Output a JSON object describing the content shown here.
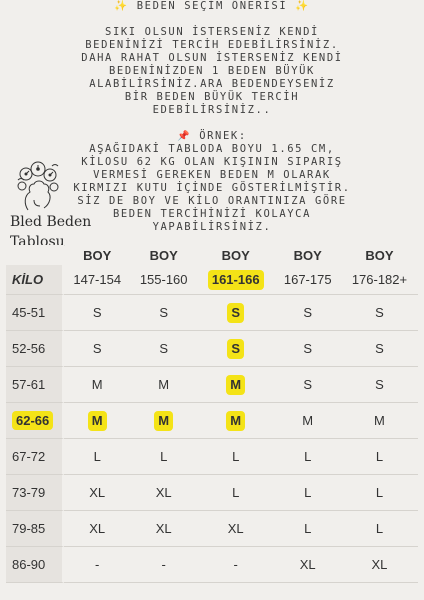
{
  "intro": {
    "heading": "BEDEN SEÇİM ÖNERİSİ",
    "paragraph1": [
      "SIKI OLSUN İSTERSENİZ KENDİ",
      "BEDENİNİZİ TERCİH EDEBİLİRSİNİZ.",
      "DAHA RAHAT OLSUN İSTERSENİZ KENDİ",
      "BEDENİNİZDEN 1 BEDEN BÜYÜK",
      "ALABİLİRSİNİZ.ARA BEDENDEYSENİZ",
      "BİR BEDEN BÜYÜK TERCİH",
      "EDEBİLİRSİNİZ.."
    ],
    "example_title": "ÖRNEK:",
    "paragraph2": [
      "AŞAĞIDAKİ TABLODA BOYU 1.65 CM,",
      "KİLOSU 62 KG OLAN KIŞININ SIPARIŞ",
      "VERMESİ GEREKEN BEDEN M OLARAK",
      "KIRMIZI KUTU İÇİNDE GÖSTERİLMİŞTİR.",
      "SİZ DE BOY VE KİLO ORANTINIZA GÖRE",
      "BEDEN TERCİHİNİZİ KOLAYCA",
      "YAPABİLİRSİNİZ."
    ]
  },
  "brand": {
    "line1": "Bled Beden",
    "line2": "Tablosu"
  },
  "icons": {
    "star": "sparkle-icon",
    "pin": "pushpin-icon",
    "logo": "flower-head-illustration"
  },
  "colors": {
    "highlight": "#f4e317",
    "label_column": "#e6e3df",
    "background": "#f1efec"
  },
  "table": {
    "boy_header": "BOY",
    "kilo_label": "KİLO",
    "heights": [
      "147-154",
      "155-160",
      "161-166",
      "167-175",
      "176-182+"
    ],
    "rows": [
      {
        "weight": "45-51",
        "sizes": [
          "S",
          "S",
          "S",
          "S",
          "S"
        ]
      },
      {
        "weight": "52-56",
        "sizes": [
          "S",
          "S",
          "S",
          "S",
          "S"
        ]
      },
      {
        "weight": "57-61",
        "sizes": [
          "M",
          "M",
          "M",
          "S",
          "S"
        ]
      },
      {
        "weight": "62-66",
        "sizes": [
          "M",
          "M",
          "M",
          "M",
          "M"
        ]
      },
      {
        "weight": "67-72",
        "sizes": [
          "L",
          "L",
          "L",
          "L",
          "L"
        ]
      },
      {
        "weight": "73-79",
        "sizes": [
          "XL",
          "XL",
          "L",
          "L",
          "L"
        ]
      },
      {
        "weight": "79-85",
        "sizes": [
          "XL",
          "XL",
          "XL",
          "L",
          "L"
        ]
      },
      {
        "weight": "86-90",
        "sizes": [
          "-",
          "-",
          "-",
          "XL",
          "XL"
        ]
      }
    ]
  }
}
